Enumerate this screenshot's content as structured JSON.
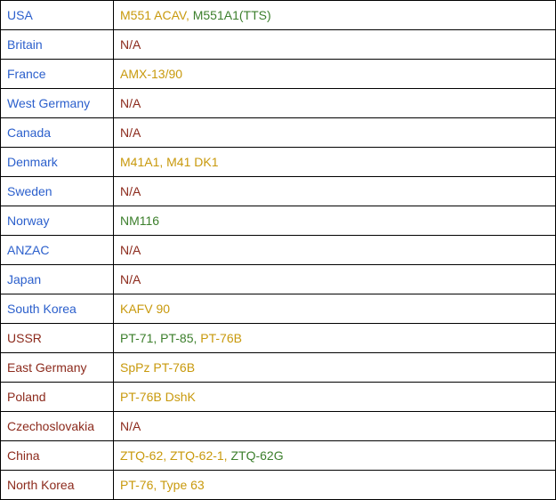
{
  "colors": {
    "blue": "#2b5fcc",
    "red": "#8c2a1c",
    "gold": "#c8990c",
    "green": "#3c7f2c"
  },
  "rows": [
    {
      "country": "USA",
      "side": "blue",
      "vehicles": [
        {
          "name": "M551 ACAV, ",
          "color": "gold"
        },
        {
          "name": "M551A1(TTS)",
          "color": "green"
        }
      ]
    },
    {
      "country": "Britain",
      "side": "blue",
      "vehicles": [
        {
          "name": "N/A",
          "color": "red"
        }
      ]
    },
    {
      "country": "France",
      "side": "blue",
      "vehicles": [
        {
          "name": "AMX-13/90",
          "color": "gold"
        }
      ]
    },
    {
      "country": "West Germany",
      "side": "blue",
      "vehicles": [
        {
          "name": "N/A",
          "color": "red"
        }
      ]
    },
    {
      "country": "Canada",
      "side": "blue",
      "vehicles": [
        {
          "name": "N/A",
          "color": "red"
        }
      ]
    },
    {
      "country": "Denmark",
      "side": "blue",
      "vehicles": [
        {
          "name": "M41A1, M41 DK1",
          "color": "gold"
        }
      ]
    },
    {
      "country": "Sweden",
      "side": "blue",
      "vehicles": [
        {
          "name": "N/A",
          "color": "red"
        }
      ]
    },
    {
      "country": "Norway",
      "side": "blue",
      "vehicles": [
        {
          "name": "NM116",
          "color": "green"
        }
      ]
    },
    {
      "country": "ANZAC",
      "side": "blue",
      "vehicles": [
        {
          "name": "N/A",
          "color": "red"
        }
      ]
    },
    {
      "country": "Japan",
      "side": "blue",
      "vehicles": [
        {
          "name": "N/A",
          "color": "red"
        }
      ]
    },
    {
      "country": "South Korea",
      "side": "blue",
      "vehicles": [
        {
          "name": "KAFV 90",
          "color": "gold"
        }
      ]
    },
    {
      "country": "USSR",
      "side": "red",
      "vehicles": [
        {
          "name": "PT-71, PT-85, ",
          "color": "green"
        },
        {
          "name": "PT-76B",
          "color": "gold"
        }
      ]
    },
    {
      "country": "East Germany",
      "side": "red",
      "vehicles": [
        {
          "name": "SpPz PT-76B",
          "color": "gold"
        }
      ]
    },
    {
      "country": "Poland",
      "side": "red",
      "vehicles": [
        {
          "name": "PT-76B DshK",
          "color": "gold"
        }
      ]
    },
    {
      "country": "Czechoslovakia",
      "side": "red",
      "vehicles": [
        {
          "name": "N/A",
          "color": "red"
        }
      ]
    },
    {
      "country": "China",
      "side": "red",
      "vehicles": [
        {
          "name": "ZTQ-62, ZTQ-62-1, ",
          "color": "gold"
        },
        {
          "name": "ZTQ-62G",
          "color": "green"
        }
      ]
    },
    {
      "country": "North Korea",
      "side": "red",
      "vehicles": [
        {
          "name": "PT-76, Type 63",
          "color": "gold"
        }
      ]
    }
  ]
}
